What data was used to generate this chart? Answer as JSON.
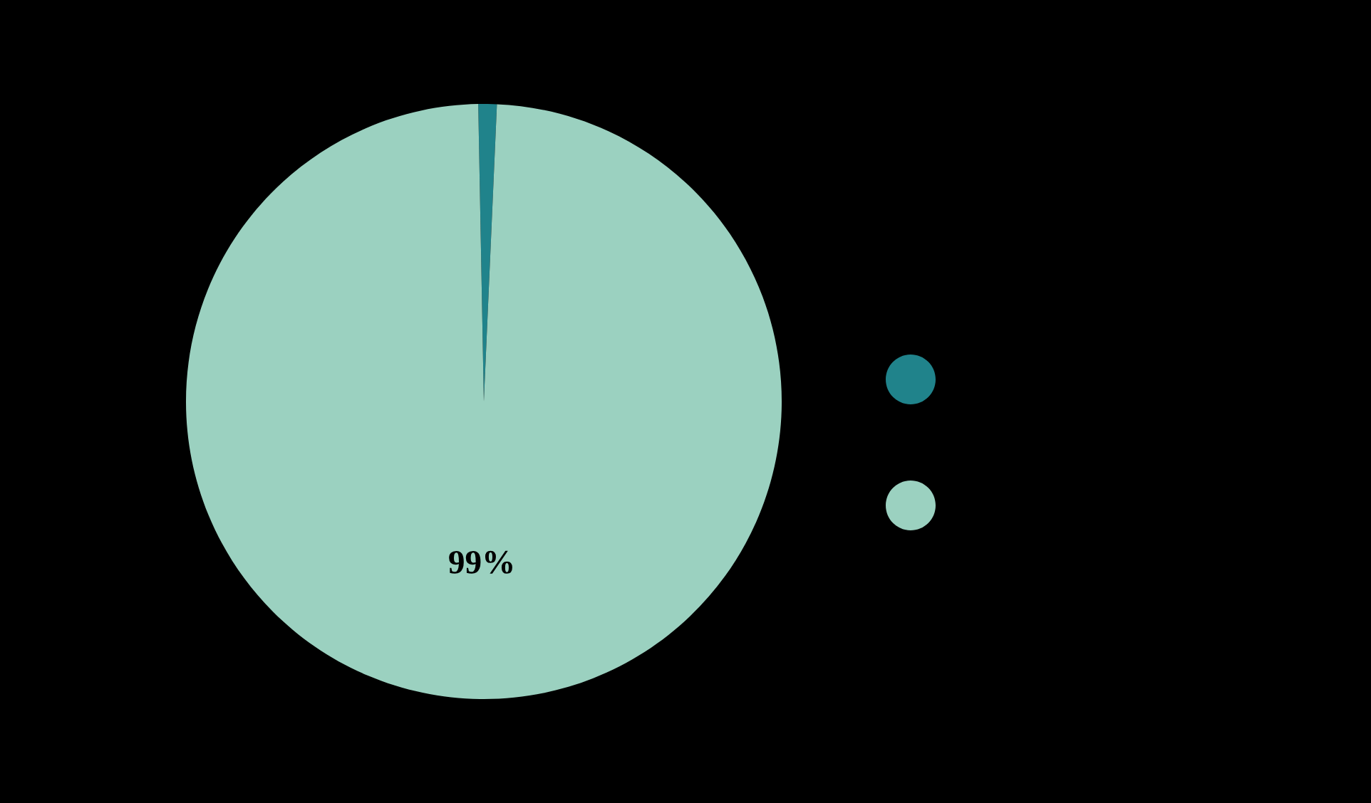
{
  "chart_data": {
    "type": "pie",
    "categories": [
      null,
      null
    ],
    "values": [
      1,
      99
    ],
    "colors": [
      "#20838b",
      "#9bd1c0"
    ],
    "value_labels": [
      null,
      "99%"
    ]
  }
}
